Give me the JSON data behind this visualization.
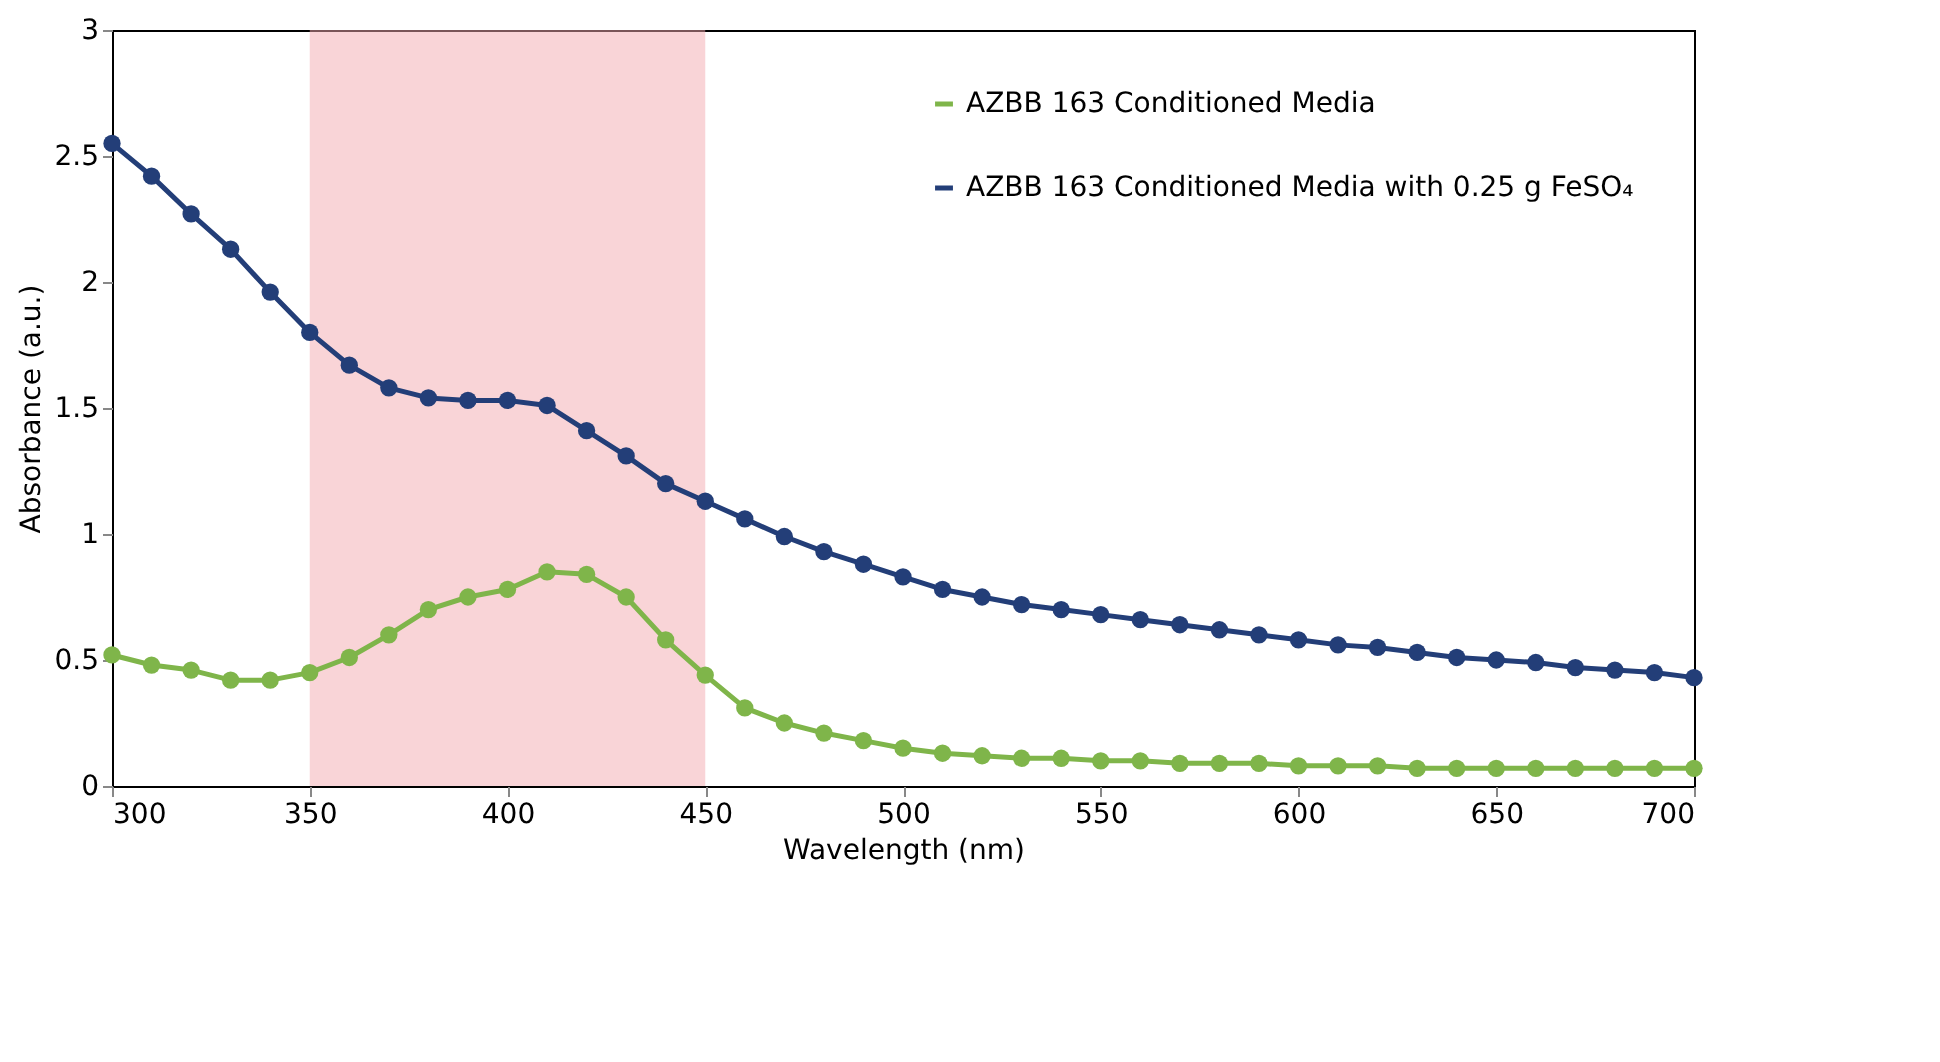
{
  "chart_data": {
    "type": "line",
    "xlabel": "Wavelength (nm)",
    "ylabel": "Absorbance (a.u.)",
    "x": [
      300,
      310,
      320,
      330,
      340,
      350,
      360,
      370,
      380,
      390,
      400,
      410,
      420,
      430,
      440,
      450,
      460,
      470,
      480,
      490,
      500,
      510,
      520,
      530,
      540,
      550,
      560,
      570,
      580,
      590,
      600,
      610,
      620,
      630,
      640,
      650,
      660,
      670,
      680,
      690,
      700
    ],
    "series": [
      {
        "name": "AZBB 163 Conditioned Media",
        "color": "#7fb54a",
        "values": [
          0.52,
          0.48,
          0.46,
          0.42,
          0.42,
          0.45,
          0.51,
          0.6,
          0.7,
          0.75,
          0.78,
          0.85,
          0.84,
          0.75,
          0.58,
          0.44,
          0.31,
          0.25,
          0.21,
          0.18,
          0.15,
          0.13,
          0.12,
          0.11,
          0.11,
          0.1,
          0.1,
          0.09,
          0.09,
          0.09,
          0.08,
          0.08,
          0.08,
          0.07,
          0.07,
          0.07,
          0.07,
          0.07,
          0.07,
          0.07,
          0.07
        ]
      },
      {
        "name": "AZBB 163 Conditioned Media with 0.25 g FeSO₄",
        "color": "#233e78",
        "values": [
          2.55,
          2.42,
          2.27,
          2.13,
          1.96,
          1.8,
          1.67,
          1.58,
          1.54,
          1.53,
          1.53,
          1.51,
          1.41,
          1.31,
          1.2,
          1.13,
          1.06,
          0.99,
          0.93,
          0.88,
          0.83,
          0.78,
          0.75,
          0.72,
          0.7,
          0.68,
          0.66,
          0.64,
          0.62,
          0.6,
          0.58,
          0.56,
          0.55,
          0.53,
          0.51,
          0.5,
          0.49,
          0.47,
          0.46,
          0.45,
          0.43
        ]
      }
    ],
    "xlim": [
      300,
      700
    ],
    "xticks": [
      300,
      350,
      400,
      450,
      500,
      550,
      600,
      650,
      700
    ],
    "ylim": [
      0,
      3
    ],
    "yticks": [
      0,
      0.5,
      1,
      1.5,
      2,
      2.5,
      3
    ],
    "bands": [
      {
        "axis": "x",
        "from": 350,
        "to": 450,
        "color": "#f4a9b0"
      }
    ],
    "marker": "circle",
    "line_style": "solid",
    "grid": false,
    "legend": "top right"
  }
}
